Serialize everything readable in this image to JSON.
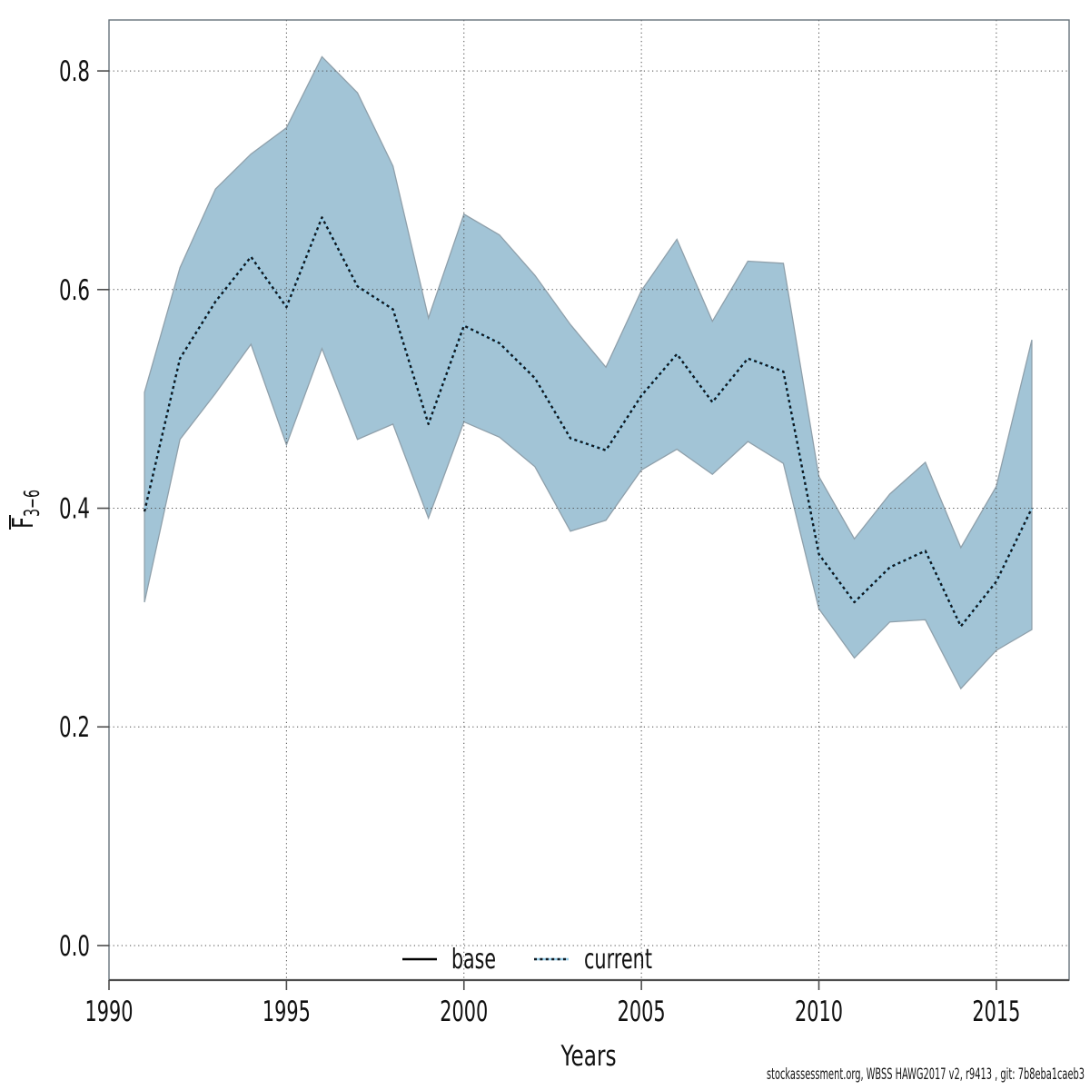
{
  "footer": {
    "credit": "stockassessment.org, WBSS HAWG2017 v2, r9413 , git: 7b8eba1caeb3"
  },
  "chart_data": {
    "type": "line",
    "title": "",
    "xlabel": "Years",
    "ylabel": {
      "main": "F",
      "overline": true,
      "subscript": "3−6"
    },
    "x": [
      1991,
      1992,
      1993,
      1994,
      1995,
      1996,
      1997,
      1998,
      1999,
      2000,
      2001,
      2002,
      2003,
      2004,
      2005,
      2006,
      2007,
      2008,
      2009,
      2010,
      2011,
      2012,
      2013,
      2014,
      2015,
      2016
    ],
    "series": [
      {
        "name": "base",
        "visible_in_plot": false,
        "values": null
      },
      {
        "name": "current",
        "visible_in_plot": true,
        "values": [
          0.397,
          0.537,
          0.589,
          0.63,
          0.584,
          0.666,
          0.603,
          0.582,
          0.477,
          0.567,
          0.551,
          0.519,
          0.464,
          0.453,
          0.503,
          0.541,
          0.497,
          0.537,
          0.525,
          0.358,
          0.314,
          0.346,
          0.361,
          0.292,
          0.333,
          0.4
        ]
      }
    ],
    "band": {
      "name": "current-confidence-band",
      "upper": [
        0.506,
        0.62,
        0.692,
        0.724,
        0.748,
        0.813,
        0.78,
        0.713,
        0.574,
        0.669,
        0.65,
        0.613,
        0.568,
        0.529,
        0.599,
        0.646,
        0.571,
        0.626,
        0.624,
        0.429,
        0.372,
        0.413,
        0.442,
        0.364,
        0.42,
        0.554
      ],
      "lower": [
        0.314,
        0.463,
        0.505,
        0.55,
        0.458,
        0.546,
        0.463,
        0.477,
        0.391,
        0.479,
        0.465,
        0.438,
        0.379,
        0.389,
        0.435,
        0.454,
        0.431,
        0.461,
        0.441,
        0.308,
        0.263,
        0.296,
        0.298,
        0.235,
        0.27,
        0.289
      ]
    },
    "xticks": [
      1990,
      1995,
      2000,
      2005,
      2010,
      2015
    ],
    "yticks": [
      0.0,
      0.2,
      0.4,
      0.6,
      0.8
    ],
    "xlim": [
      1990,
      2017.05
    ],
    "ylim": [
      -0.0316,
      0.8466
    ],
    "grid": "dotted",
    "legend_position": "bottom-center-inside",
    "legend": [
      {
        "label": "base",
        "line_style": "solid",
        "color": "#000000"
      },
      {
        "label": "current",
        "line_style": "dotted",
        "dash": "#10181f",
        "underlay": "#96cde8"
      }
    ],
    "style": {
      "band_fill": "#a2c4d6",
      "band_edge": "#8fa0ab",
      "current_underlay": "#96cde8",
      "current_dash": "#10181f",
      "grid": "#4a4a4a",
      "border": "#66727a",
      "axis": "#4c4c4c",
      "text": "#111111",
      "background": "#ffffff"
    }
  }
}
